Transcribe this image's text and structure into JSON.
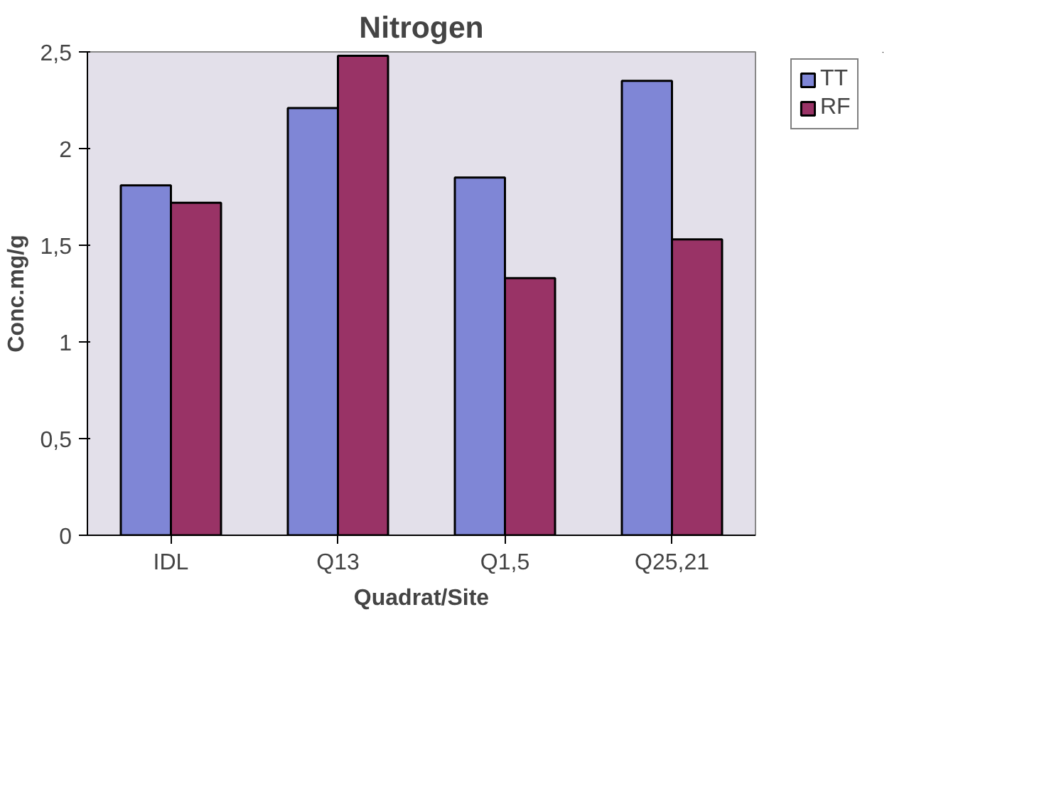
{
  "chart_data": {
    "type": "bar",
    "title": "Nitrogen",
    "xlabel": "Quadrat/Site",
    "ylabel": "Conc.mg/g",
    "categories": [
      "IDL",
      "Q13",
      "Q1,5",
      "Q25,21"
    ],
    "series": [
      {
        "name": "TT",
        "color": "#7f86d6",
        "values": [
          1.81,
          2.21,
          1.85,
          2.35
        ]
      },
      {
        "name": "RF",
        "color": "#993366",
        "values": [
          1.72,
          2.48,
          1.33,
          1.53
        ]
      }
    ],
    "ylim": [
      0,
      2.5
    ],
    "yticks": [
      0,
      {
        "value": 0.5,
        "label": "0,5"
      },
      1,
      {
        "value": 1.5,
        "label": "1,5"
      },
      2,
      {
        "value": 2.5,
        "label": "2,5"
      }
    ],
    "grid": false,
    "legend": "top right"
  }
}
